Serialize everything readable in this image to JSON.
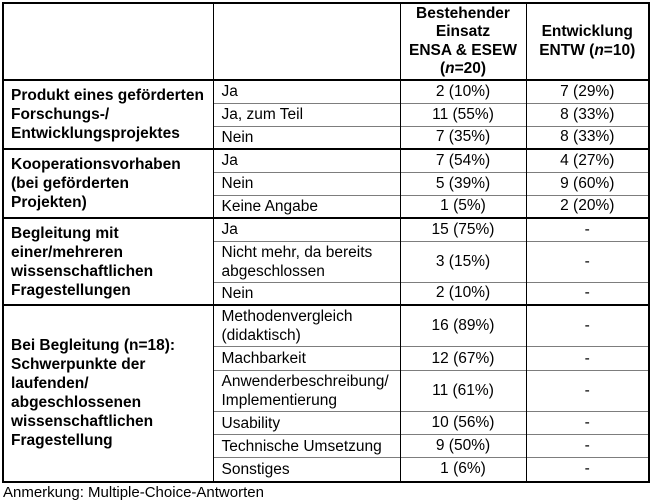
{
  "header": {
    "col3": {
      "lines": [
        "Bestehender",
        "Einsatz",
        "ENSA & ESEW"
      ],
      "n_pre": "(",
      "n_it": "n",
      "n_post": "=20)"
    },
    "col4": {
      "lines": [
        "Entwicklung"
      ],
      "n_pre": "ENTW (",
      "n_it": "n",
      "n_post": "=10)"
    }
  },
  "groups": [
    {
      "label": "Produkt eines geförderten\nForschungs-/\nEntwicklungsprojektes",
      "rows": [
        {
          "answer": "Ja",
          "v1": "2 (10%)",
          "v2": "7 (29%)"
        },
        {
          "answer": "Ja, zum Teil",
          "v1": "11 (55%)",
          "v2": "8 (33%)"
        },
        {
          "answer": "Nein",
          "v1": "7 (35%)",
          "v2": "8 (33%)"
        }
      ]
    },
    {
      "label": "Kooperationsvorhaben\n(bei geförderten Projekten)",
      "rows": [
        {
          "answer": "Ja",
          "v1": "7 (54%)",
          "v2": "4 (27%)"
        },
        {
          "answer": "Nein",
          "v1": "5 (39%)",
          "v2": "9 (60%)"
        },
        {
          "answer": "Keine Angabe",
          "v1": "1 (5%)",
          "v2": "2 (20%)"
        }
      ]
    },
    {
      "label": "Begleitung mit\neiner/mehreren\nwissenschaftlichen\nFragestellungen",
      "rows": [
        {
          "answer": "Ja",
          "v1": "15 (75%)",
          "v2": "-"
        },
        {
          "answer": "Nicht mehr, da bereits\nabgeschlossen",
          "v1": "3 (15%)",
          "v2": "-"
        },
        {
          "answer": "Nein",
          "v1": "2 (10%)",
          "v2": "-"
        }
      ]
    },
    {
      "label": "Bei Begleitung (n=18):\nSchwerpunkte der\nlaufenden/\nabgeschlossenen\nwissenschaftlichen\nFragestellung",
      "rows": [
        {
          "answer": "Methodenvergleich\n(didaktisch)",
          "v1": "16 (89%)",
          "v2": "-"
        },
        {
          "answer": "Machbarkeit",
          "v1": "12 (67%)",
          "v2": "-"
        },
        {
          "answer": "Anwenderbeschreibung/\nImplementierung",
          "v1": "11 (61%)",
          "v2": "-"
        },
        {
          "answer": "Usability",
          "v1": "10 (56%)",
          "v2": "-"
        },
        {
          "answer": "Technische Umsetzung",
          "v1": "9 (50%)",
          "v2": "-"
        },
        {
          "answer": "Sonstiges",
          "v1": "1 (6%)",
          "v2": "-"
        }
      ]
    }
  ],
  "footer": {
    "note": "Anmerkung: Multiple-Choice-Antworten"
  }
}
